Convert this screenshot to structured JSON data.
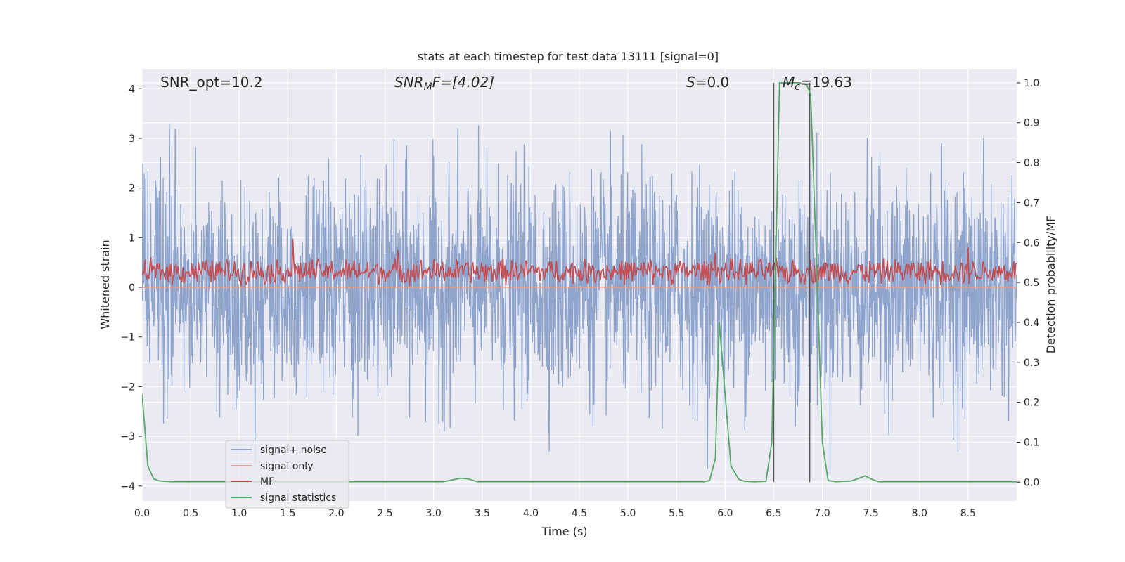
{
  "colors": {
    "background": "#eaeaf2",
    "grid": "#ffffff",
    "noise": "#8fa5cd",
    "signal_only": "#eba08a",
    "mf": "#c44e52",
    "stats": "#55a868",
    "vline": "#555555"
  },
  "chart_data": {
    "type": "line",
    "title": "stats at each timestep for test data 13111 [signal=0]",
    "xlabel": "Time (s)",
    "ylabel": "Whitened strain",
    "ylabel_right": "Detection probability/MF",
    "xlim": [
      0.0,
      9.0
    ],
    "ylim": [
      -4.3,
      4.4
    ],
    "ylim_right": [
      -0.047,
      1.035
    ],
    "x_ticks": [
      "0.0",
      "0.5",
      "1.0",
      "1.5",
      "2.0",
      "2.5",
      "3.0",
      "3.5",
      "4.0",
      "4.5",
      "5.0",
      "5.5",
      "6.0",
      "6.5",
      "7.0",
      "7.5",
      "8.0",
      "8.5"
    ],
    "y_ticks": [
      "−4",
      "−3",
      "−2",
      "−1",
      "0",
      "1",
      "2",
      "3",
      "4"
    ],
    "y_ticks_right": [
      "0.0",
      "0.1",
      "0.2",
      "0.3",
      "0.4",
      "0.5",
      "0.6",
      "0.7",
      "0.8",
      "0.9",
      "1.0"
    ],
    "grid": true,
    "legend_placement": "lower-left",
    "annotations": {
      "snr_opt": "SNR_opt=10.2",
      "snr_mf_main": "SNR",
      "snr_mf_sub": "M",
      "snr_mf_rest": "F=[4.02]",
      "s_main": "S",
      "s_rest": "=0.0",
      "mc_main": "M",
      "mc_sub": "c",
      "mc_rest": "=19.63"
    },
    "vlines": [
      6.5,
      6.87
    ],
    "series": [
      {
        "name": "signal+ noise",
        "envelope": {
          "n": 2400,
          "mean": 0.0,
          "std": 1.0,
          "amp_max": 3.8
        }
      },
      {
        "name": "signal only",
        "x": [
          0.0,
          9.0
        ],
        "y": [
          0.0,
          0.0
        ]
      },
      {
        "name": "MF",
        "envelope": {
          "n": 900,
          "base": 0.32,
          "amp": 0.3,
          "peaks": [
            [
              1.55,
              0.98
            ],
            [
              2.63,
              0.75
            ],
            [
              5.9,
              0.7
            ],
            [
              8.5,
              0.8
            ]
          ]
        }
      },
      {
        "name": "signal statistics",
        "x": [
          0.0,
          0.06,
          0.12,
          0.18,
          0.3,
          3.1,
          3.2,
          3.28,
          3.36,
          3.45,
          5.78,
          5.84,
          5.9,
          5.94,
          6.0,
          6.06,
          6.14,
          6.2,
          6.3,
          6.42,
          6.48,
          6.52,
          6.56,
          6.6,
          6.76,
          6.84,
          6.88,
          6.94,
          7.0,
          7.06,
          7.14,
          7.3,
          7.38,
          7.44,
          7.5,
          7.58,
          9.0
        ],
        "y": [
          0.22,
          0.04,
          0.008,
          0.003,
          0.001,
          0.001,
          0.006,
          0.01,
          0.008,
          0.001,
          0.001,
          0.004,
          0.06,
          0.4,
          0.22,
          0.04,
          0.007,
          0.002,
          0.001,
          0.002,
          0.1,
          0.55,
          1.0,
          1.0,
          1.0,
          0.995,
          0.97,
          0.55,
          0.1,
          0.004,
          0.001,
          0.003,
          0.01,
          0.016,
          0.008,
          0.001,
          0.001
        ]
      }
    ]
  }
}
